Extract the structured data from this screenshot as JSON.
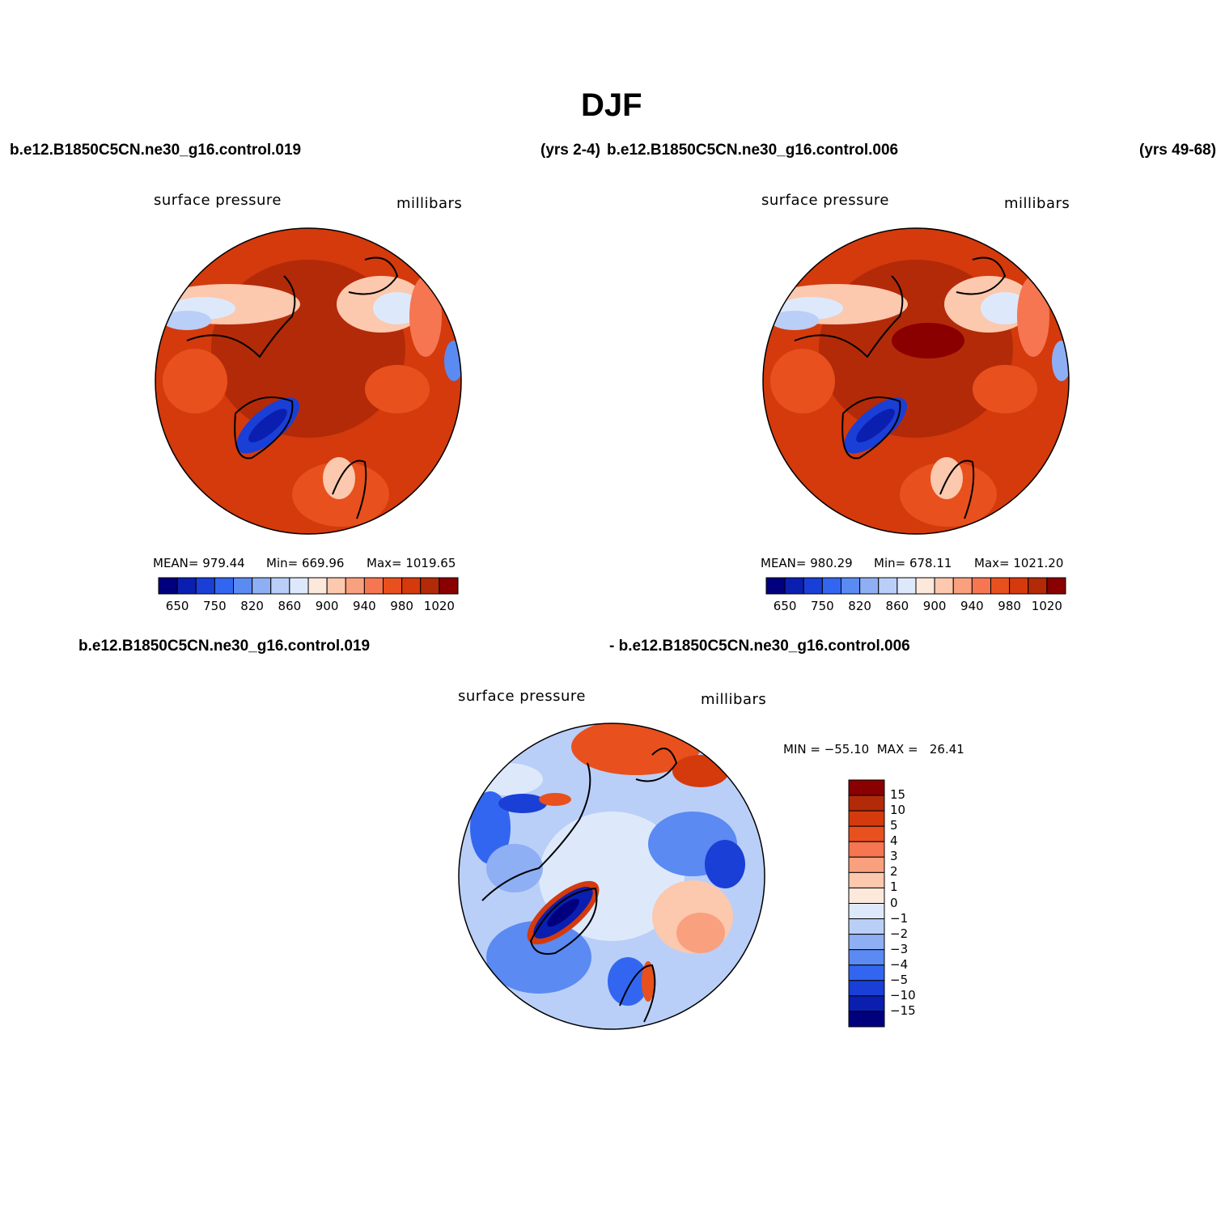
{
  "title": "DJF",
  "panels": [
    {
      "case_name": "b.e12.B1850C5CN.ne30_g16.control.019",
      "years": "(yrs 2-4)",
      "variable": "surface pressure",
      "units": "millibars",
      "mean_text": "MEAN= 979.44",
      "min_text": "Min= 669.96",
      "max_text": "Max= 1019.65"
    },
    {
      "case_name": "b.e12.B1850C5CN.ne30_g16.control.006",
      "years": "(yrs 49-68)",
      "variable": "surface pressure",
      "units": "millibars",
      "mean_text": "MEAN= 980.29",
      "min_text": "Min= 678.11",
      "max_text": "Max= 1021.20"
    }
  ],
  "diff": {
    "case_a": "b.e12.B1850C5CN.ne30_g16.control.019",
    "case_b": "- b.e12.B1850C5CN.ne30_g16.control.006",
    "variable": "surface pressure",
    "units": "millibars",
    "minmax_text": "MIN = −55.10  MAX =   26.41"
  },
  "colorbar_abs": {
    "colors": [
      "#00007f",
      "#0a1fb0",
      "#1a3fd6",
      "#3366f0",
      "#5a8af2",
      "#8eaff4",
      "#b9cff8",
      "#dde9fb",
      "#fde8dc",
      "#fcc8ae",
      "#f9a07e",
      "#f57650",
      "#e8501e",
      "#d43a0c",
      "#b32a08",
      "#8a0000"
    ],
    "labels": [
      "650",
      "750",
      "820",
      "860",
      "900",
      "940",
      "980",
      "1020"
    ]
  },
  "colorbar_diff": {
    "colors": [
      "#8a0000",
      "#b32a08",
      "#d43a0c",
      "#e8501e",
      "#f57650",
      "#f9a07e",
      "#fcc8ae",
      "#fde8dc",
      "#dde9fb",
      "#b9cff8",
      "#8eaff4",
      "#5a8af2",
      "#3366f0",
      "#1a3fd6",
      "#0a1fb0",
      "#00007f"
    ],
    "labels": [
      "15",
      "10",
      "5",
      "4",
      "3",
      "2",
      "1",
      "0",
      "−1",
      "−2",
      "−3",
      "−4",
      "−5",
      "−10",
      "−15"
    ]
  }
}
